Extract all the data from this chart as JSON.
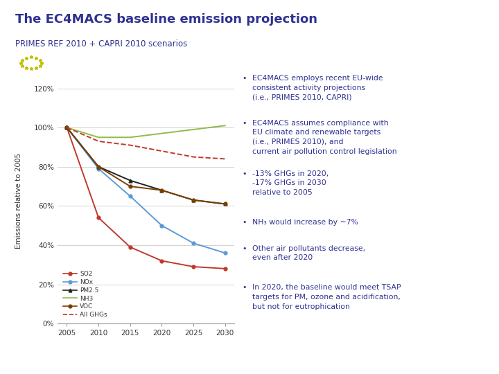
{
  "title": "The EC4MACS baseline emission projection",
  "subtitle": "PRIMES REF 2010 + CAPRI 2010 scenarios",
  "years": [
    2005,
    2010,
    2015,
    2020,
    2025,
    2030
  ],
  "series_order": [
    "SO2",
    "NOx",
    "PM2.5",
    "NH3",
    "VOC",
    "All GHGs"
  ],
  "series": {
    "SO2": {
      "values": [
        100,
        54,
        39,
        32,
        29,
        28
      ],
      "color": "#c0392b",
      "marker": "o",
      "linestyle": "-",
      "linewidth": 1.4
    },
    "NOx": {
      "values": [
        100,
        79,
        65,
        50,
        41,
        36
      ],
      "color": "#5b9bd5",
      "marker": "o",
      "linestyle": "-",
      "linewidth": 1.4
    },
    "PM2.5": {
      "values": [
        100,
        80,
        73,
        68,
        63,
        61
      ],
      "color": "#222222",
      "marker": "^",
      "linestyle": "-",
      "linewidth": 1.4
    },
    "NH3": {
      "values": [
        100,
        95,
        95,
        97,
        99,
        101
      ],
      "color": "#8fbc47",
      "marker": null,
      "linestyle": "-",
      "linewidth": 1.4
    },
    "VOC": {
      "values": [
        100,
        80,
        70,
        68,
        63,
        61
      ],
      "color": "#7b3f00",
      "marker": "o",
      "linestyle": "-",
      "linewidth": 1.4
    },
    "All GHGs": {
      "values": [
        100,
        93,
        91,
        88,
        85,
        84
      ],
      "color": "#c0392b",
      "marker": null,
      "linestyle": "--",
      "linewidth": 1.4
    }
  },
  "ylabel": "Emissions relative to 2005",
  "ylim": [
    0,
    125
  ],
  "yticks": [
    0,
    20,
    40,
    60,
    80,
    100,
    120
  ],
  "ytick_labels": [
    "0%",
    "20%",
    "40%",
    "60%",
    "80%",
    "100%",
    "120%"
  ],
  "xlim": [
    2003.5,
    2031.5
  ],
  "xticks": [
    2005,
    2010,
    2015,
    2020,
    2025,
    2030
  ],
  "background_color": "#ffffff",
  "grid_color": "#cccccc",
  "text_color": "#2e3191",
  "bullet_points": [
    "EC4MACS employs recent EU-wide\nconsistent activity projections\n(i.e., PRIMES 2010, CAPRI)",
    "EC4MACS assumes compliance with\nEU climate and renewable targets\n(i.e., PRIMES 2010), and\ncurrent air pollution control legislation",
    "-13% GHGs in 2020,\n-17% GHGs in 2030\nrelative to 2005",
    "NH₃ would increase by ~7%",
    "Other air pollutants decrease,\neven after 2020",
    "In 2020, the baseline would meet TSAP\ntargets for PM, ozone and acidification,\nbut not for eutrophication"
  ],
  "header_bar_color": "#2e3191",
  "title_color": "#2e3191",
  "subtitle_color": "#2e3191"
}
